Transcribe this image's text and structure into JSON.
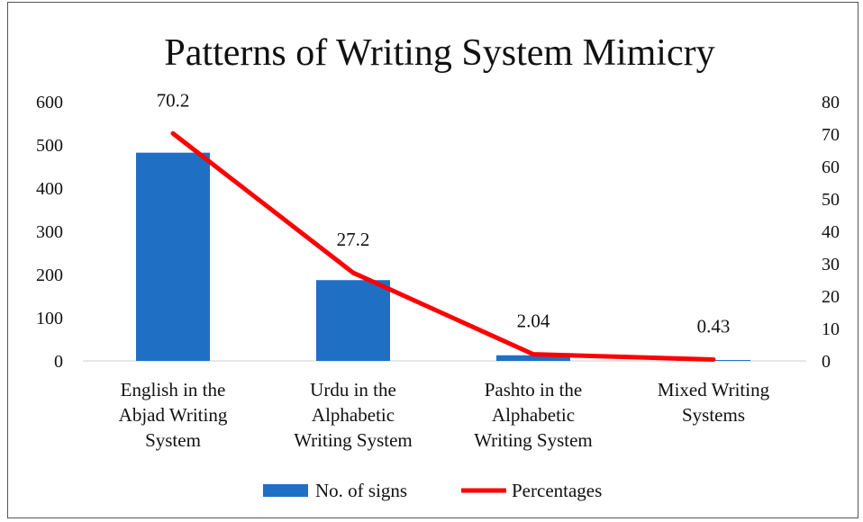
{
  "chart_data": {
    "type": "bar+line",
    "title": "Patterns of Writing System Mimicry",
    "categories": [
      [
        "English in the",
        "Abjad Writing",
        "System"
      ],
      [
        "Urdu in the",
        "Alphabetic",
        "Writing System"
      ],
      [
        "Pashto in the",
        "Alphabetic",
        "Writing System"
      ],
      [
        "Mixed Writing",
        "Systems"
      ]
    ],
    "series": [
      {
        "name": "No. of signs",
        "type": "bar",
        "axis": "left",
        "values": [
          482,
          187,
          13,
          2
        ],
        "color": "#1F6FC5"
      },
      {
        "name": "Percentages",
        "type": "line",
        "axis": "right",
        "values": [
          70.2,
          27.2,
          2.04,
          0.43
        ],
        "labels": [
          "70.2",
          "27.2",
          "2.04",
          "0.43"
        ],
        "color": "#FF0000"
      }
    ],
    "y_left": {
      "min": 0,
      "max": 600,
      "ticks": [
        "0",
        "100",
        "200",
        "300",
        "400",
        "500",
        "600"
      ]
    },
    "y_right": {
      "min": 0,
      "max": 80,
      "ticks": [
        "0",
        "10",
        "20",
        "30",
        "40",
        "50",
        "60",
        "70",
        "80"
      ]
    },
    "grid": false,
    "legend_position": "bottom"
  }
}
